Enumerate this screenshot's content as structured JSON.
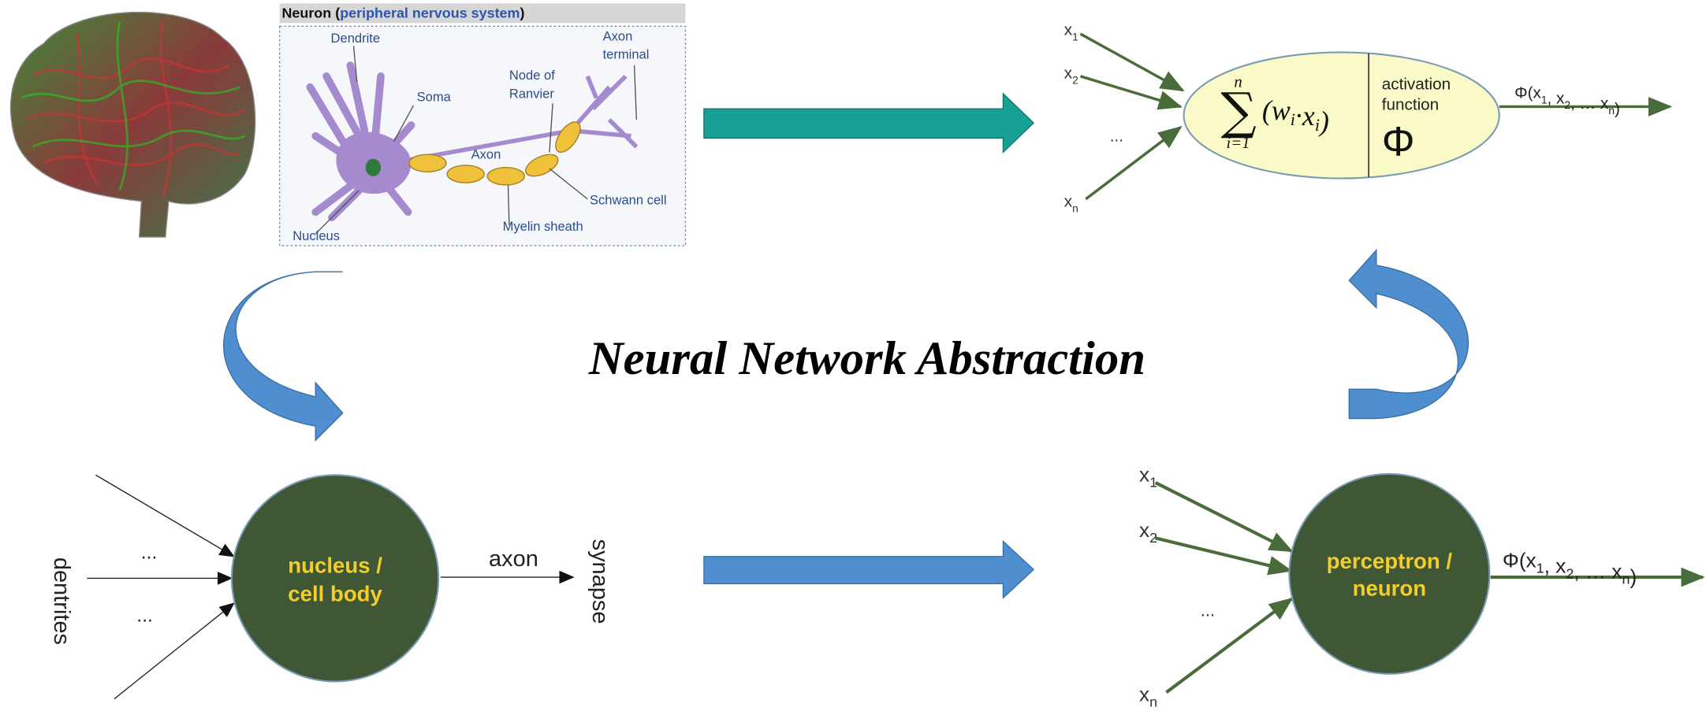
{
  "title": "Neural Network Abstraction",
  "neuron_panel": {
    "header": {
      "prefix": "Neuron (",
      "link": "peripheral nervous system",
      "suffix": ")"
    },
    "labels": {
      "dendrite": [
        "Dendrite"
      ],
      "soma": [
        "Soma"
      ],
      "axon": [
        "Axon"
      ],
      "node": [
        "Node of",
        "Ranvier"
      ],
      "terminal": [
        "Axon",
        "terminal"
      ],
      "schwann": [
        "Schwann cell"
      ],
      "myelin": [
        "Myelin sheath"
      ],
      "nucleus": [
        "Nucleus"
      ]
    }
  },
  "formula_neuron": {
    "inputs": [
      {
        "text": "x",
        "sub": "1"
      },
      {
        "text": "x",
        "sub": "2"
      },
      {
        "text": "x",
        "sub": "n"
      }
    ],
    "ellipsis": "...",
    "sum": {
      "symbol": "∑",
      "upper": "n",
      "lower": "i=1",
      "term": [
        {
          "text": "(w",
          "sub": "i"
        },
        {
          "text": "·x",
          "sub": "i"
        },
        {
          "text": ")"
        }
      ]
    },
    "activation": [
      "activation",
      "function"
    ],
    "phi": "Φ",
    "output": [
      {
        "text": "Φ(x",
        "sub": "1"
      },
      {
        "text": ", x",
        "sub": "2"
      },
      {
        "text": ", … x",
        "sub": "n"
      },
      {
        "text": ")"
      }
    ]
  },
  "biological_neuron": {
    "inputs_label": "dentrites",
    "ellipses": [
      "...",
      "..."
    ],
    "body": [
      "nucleus /",
      "cell body"
    ],
    "output_label": "axon",
    "target": "synapse"
  },
  "perceptron": {
    "inputs": [
      {
        "text": "x",
        "sub": "1"
      },
      {
        "text": "x",
        "sub": "2"
      },
      {
        "text": "x",
        "sub": "n"
      }
    ],
    "ellipsis": "...",
    "body": [
      "perceptron /",
      "neuron"
    ],
    "output": [
      {
        "text": "Φ(x",
        "sub": "1"
      },
      {
        "text": ", x",
        "sub": "2"
      },
      {
        "text": ", … x",
        "sub": "n"
      },
      {
        "text": ")"
      }
    ]
  }
}
